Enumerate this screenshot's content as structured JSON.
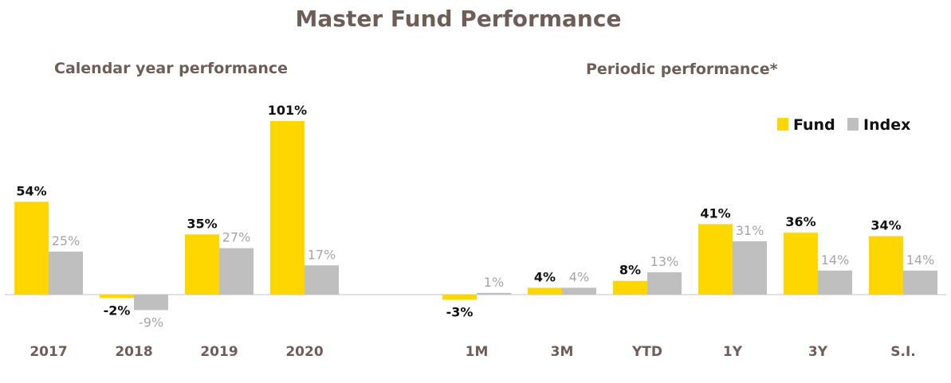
{
  "title": "Master Fund Performance",
  "legend": {
    "fund_label": "Fund",
    "index_label": "Index"
  },
  "colors": {
    "fund": "#ffd700",
    "index": "#bfbfbf",
    "title": "#6e5e57",
    "axis": "#d9d9d9"
  },
  "chart_data": [
    {
      "type": "bar",
      "title": "Calendar year performance",
      "categories": [
        "2017",
        "2018",
        "2019",
        "2020"
      ],
      "series": [
        {
          "name": "Fund",
          "values": [
            54,
            -2,
            35,
            101
          ],
          "labels": [
            "54%",
            "-2%",
            "35%",
            "101%"
          ]
        },
        {
          "name": "Index",
          "values": [
            25,
            -9,
            27,
            17
          ],
          "labels": [
            "25%",
            "-9%",
            "27%",
            "17%"
          ]
        }
      ],
      "xlabel": "",
      "ylabel": "",
      "grid": false
    },
    {
      "type": "bar",
      "title": "Periodic performance*",
      "categories": [
        "1M",
        "3M",
        "YTD",
        "1Y",
        "3Y",
        "S.I."
      ],
      "series": [
        {
          "name": "Fund",
          "values": [
            -3,
            4,
            8,
            41,
            36,
            34
          ],
          "labels": [
            "-3%",
            "4%",
            "8%",
            "41%",
            "36%",
            "34%"
          ]
        },
        {
          "name": "Index",
          "values": [
            1,
            4,
            13,
            31,
            14,
            14
          ],
          "labels": [
            "1%",
            "4%",
            "13%",
            "31%",
            "14%",
            "14%"
          ]
        }
      ],
      "legend": "top-right",
      "xlabel": "",
      "ylabel": "",
      "grid": false
    }
  ]
}
